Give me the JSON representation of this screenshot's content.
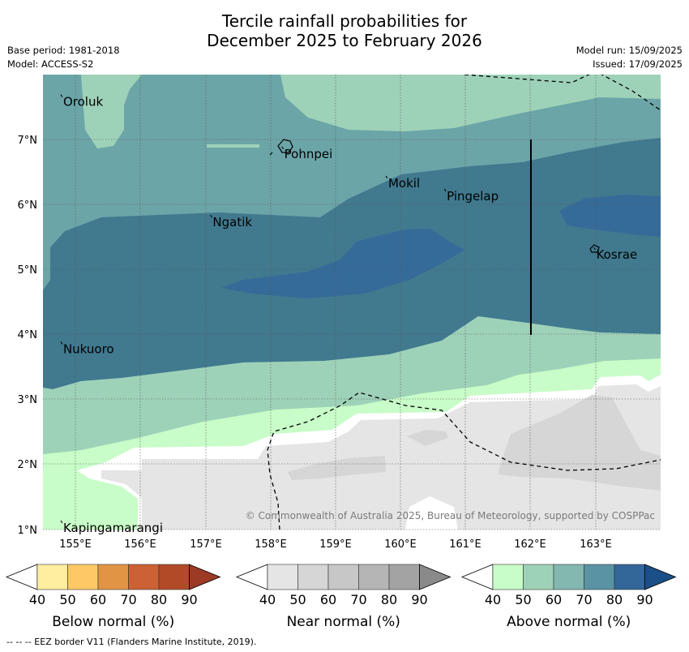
{
  "title_line1": "Tercile rainfall probabilities for",
  "title_line2": "December 2025 to February 2026",
  "base_period": "Base period: 1981-2018",
  "model": "Model: ACCESS-S2",
  "model_run": "Model run: 15/09/2025",
  "issued": "Issued: 17/09/2025",
  "copyright": "© Commonwealth of Australia 2025, Bureau of Meteorology, supported by COSPPac",
  "footnote": "--  --  -- EEZ border V11 (Flanders Marine Institute, 2019).",
  "axes": {
    "lon_ticks": [
      "155°E",
      "156°E",
      "157°E",
      "158°E",
      "159°E",
      "160°E",
      "161°E",
      "162°E",
      "163°E"
    ],
    "lat_ticks": [
      "7°N",
      "6°N",
      "5°N",
      "4°N",
      "3°N",
      "2°N",
      "1°N"
    ]
  },
  "places": [
    {
      "name": "Oroluk",
      "lon": 154.8,
      "lat": 7.65
    },
    {
      "name": "Pohnpei",
      "lon": 158.2,
      "lat": 6.85
    },
    {
      "name": "Mokil",
      "lon": 159.8,
      "lat": 6.4
    },
    {
      "name": "Pingelap",
      "lon": 160.7,
      "lat": 6.2
    },
    {
      "name": "Ngatik",
      "lon": 157.1,
      "lat": 5.8
    },
    {
      "name": "Kosrae",
      "lon": 163.0,
      "lat": 5.3
    },
    {
      "name": "Nukuoro",
      "lon": 154.8,
      "lat": 3.85
    },
    {
      "name": "Kapingamarangi",
      "lon": 154.8,
      "lat": 1.1
    }
  ],
  "colorbars": [
    {
      "label": "Below normal (%)",
      "ticks": [
        "40",
        "50",
        "60",
        "70",
        "80",
        "90"
      ],
      "colors": [
        "#ffeda0",
        "#fec965",
        "#e29445",
        "#cc6133",
        "#b24a28"
      ],
      "over": "#9c3a24"
    },
    {
      "label": "Near normal (%)",
      "ticks": [
        "40",
        "50",
        "60",
        "70",
        "80",
        "90"
      ],
      "colors": [
        "#e5e5e5",
        "#d6d6d6",
        "#c7c7c7",
        "#b5b5b5",
        "#a3a3a3"
      ],
      "over": "#8a8a8a"
    },
    {
      "label": "Above normal (%)",
      "ticks": [
        "40",
        "50",
        "60",
        "70",
        "80",
        "90"
      ],
      "colors": [
        "#c8fcc8",
        "#9ed2b8",
        "#82b8b0",
        "#5a93a3",
        "#336699"
      ],
      "over": "#1b4f87"
    }
  ]
}
